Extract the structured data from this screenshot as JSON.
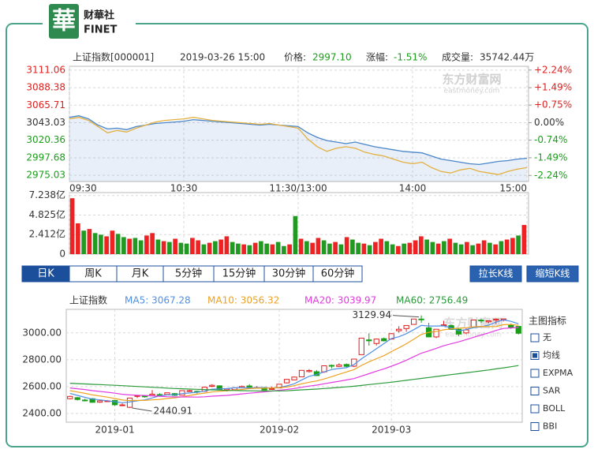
{
  "logo": {
    "mark": "華",
    "name": "财華社",
    "latin": "FINET"
  },
  "quote": {
    "name": "上证指数[000001]",
    "time": "2019-03-26 15:00",
    "price_label": "价格:",
    "price": "2997.10",
    "change_label": "涨幅:",
    "change": "-1.51%",
    "volume_label": "成交量:",
    "volume": "35742.44万",
    "change_color": "#1a9e1a"
  },
  "watermark": {
    "cn": "东方财富网",
    "en": "eastmoney.com"
  },
  "chart_data": [
    {
      "type": "line",
      "categories": [
        "09:30",
        null,
        null,
        null,
        null,
        null,
        null,
        null,
        null,
        null,
        null,
        null,
        "10:30",
        null,
        null,
        null,
        null,
        null,
        null,
        null,
        null,
        null,
        null,
        null,
        "11:30/13:00",
        null,
        null,
        null,
        null,
        null,
        null,
        null,
        null,
        null,
        null,
        null,
        "14:00",
        null,
        null,
        null,
        null,
        null,
        null,
        null,
        null,
        null,
        null,
        null,
        "15:00"
      ],
      "series": [
        {
          "color": "#4a86c8",
          "area": true,
          "values": [
            3050,
            3052,
            3048,
            3040,
            3035,
            3036,
            3034,
            3038,
            3040,
            3042,
            3043,
            3044,
            3045,
            3047,
            3046,
            3045,
            3044,
            3043,
            3042,
            3041,
            3040,
            3041,
            3040,
            3039,
            3038,
            3030,
            3024,
            3020,
            3018,
            3016,
            3018,
            3015,
            3012,
            3010,
            3008,
            3006,
            3005,
            3004,
            3000,
            2996,
            2994,
            2992,
            2990,
            2989,
            2991,
            2993,
            2994,
            2996,
            2997.1
          ]
        },
        {
          "color": "#e3b040",
          "values": [
            3048,
            3050,
            3046,
            3038,
            3030,
            3033,
            3031,
            3036,
            3040,
            3044,
            3046,
            3047,
            3048,
            3050,
            3048,
            3046,
            3045,
            3044,
            3043,
            3042,
            3041,
            3042,
            3040,
            3038,
            3036,
            3022,
            3012,
            3006,
            3010,
            3012,
            3010,
            3005,
            3002,
            3000,
            2996,
            2992,
            2990,
            2992,
            2985,
            2980,
            2978,
            2982,
            2984,
            2980,
            2978,
            2976,
            2980,
            2983,
            2985
          ]
        }
      ],
      "ylim": [
        2967,
        3116
      ],
      "yticks": [
        2975.03,
        2997.68,
        3020.36,
        3043.03,
        3065.71,
        3088.38,
        3111.06
      ],
      "y2lim": [
        -2.5,
        2.4
      ],
      "y2ticks": [
        {
          "value": -2.24,
          "label": "-2.24%"
        },
        {
          "value": -1.49,
          "label": "-1.49%"
        },
        {
          "value": -0.74,
          "label": "-0.74%"
        },
        {
          "value": 0,
          "label": "0.00%"
        },
        {
          "value": 0.75,
          "label": "+0.75%"
        },
        {
          "value": 1.49,
          "label": "+1.49%"
        },
        {
          "value": 2.24,
          "label": "+2.24%"
        }
      ],
      "up_color": "#e0201e",
      "down_color": "#1a9e1a",
      "grid": true
    },
    {
      "type": "bar",
      "values": [
        6.9,
        3.8,
        2.9,
        3.1,
        2.6,
        2.4,
        2.2,
        2.9,
        2.5,
        2.1,
        1.9,
        2.0,
        1.7,
        2.3,
        2.6,
        1.8,
        1.6,
        1.5,
        1.9,
        1.4,
        1.3,
        2.0,
        1.7,
        1.2,
        1.4,
        1.6,
        1.8,
        2.2,
        1.5,
        1.3,
        1.2,
        1.1,
        1.4,
        1.6,
        1.3,
        1.2,
        1.5,
        1.0,
        1.2,
        4.7,
        1.9,
        1.6,
        1.4,
        2.0,
        1.7,
        1.3,
        1.5,
        1.2,
        2.1,
        1.8,
        1.4,
        1.3,
        1.1,
        1.5,
        1.9,
        1.6,
        1.2,
        1.0,
        1.3,
        1.4,
        1.7,
        2.2,
        1.8,
        1.5,
        1.3,
        1.6,
        1.9,
        1.4,
        1.2,
        1.5,
        1.1,
        1.3,
        1.7,
        1.4,
        1.2,
        1.6,
        1.8,
        2.0,
        2.3,
        3.6
      ],
      "colors": [
        "#e22",
        "#e22",
        "#292",
        "#e22",
        "#292",
        "#292",
        "#e22",
        "#e22",
        "#292",
        "#292",
        "#e22",
        "#292",
        "#292",
        "#e22",
        "#e22",
        "#292",
        "#e22",
        "#292",
        "#e22",
        "#292",
        "#292",
        "#e22",
        "#e22",
        "#292",
        "#e22",
        "#292",
        "#e22",
        "#e22",
        "#292",
        "#292",
        "#e22",
        "#292",
        "#e22",
        "#292",
        "#292",
        "#e22",
        "#292",
        "#292",
        "#e22",
        "#292",
        "#e22",
        "#292",
        "#e22",
        "#e22",
        "#292",
        "#292",
        "#e22",
        "#292",
        "#e22",
        "#292",
        "#292",
        "#e22",
        "#292",
        "#e22",
        "#e22",
        "#292",
        "#292",
        "#e22",
        "#292",
        "#e22",
        "#e22",
        "#e22",
        "#292",
        "#292",
        "#e22",
        "#292",
        "#e22",
        "#292",
        "#292",
        "#e22",
        "#292",
        "#e22",
        "#e22",
        "#292",
        "#e22",
        "#292",
        "#e22",
        "#e22",
        "#292",
        "#e22"
      ],
      "ylim": [
        0,
        7.6
      ],
      "yticks": [
        0,
        {
          "value": 2.412,
          "label": "2.412亿"
        },
        {
          "value": 4.825,
          "label": "4.825亿"
        },
        {
          "value": 7.238,
          "label": "7.238亿"
        }
      ],
      "grid": true
    },
    {
      "type": "candlestick",
      "title": "上证指数",
      "categories": [
        null,
        null,
        null,
        null,
        null,
        null,
        "2019-01",
        null,
        null,
        null,
        null,
        null,
        null,
        null,
        null,
        null,
        null,
        null,
        null,
        null,
        null,
        null,
        null,
        null,
        null,
        null,
        null,
        null,
        "2019-02",
        null,
        null,
        null,
        null,
        null,
        null,
        null,
        null,
        null,
        null,
        null,
        null,
        null,
        null,
        "2019-03",
        null,
        null,
        null,
        null,
        null,
        null,
        null,
        null,
        null,
        null,
        null,
        null,
        null,
        null,
        null,
        null,
        null
      ],
      "ohlc": [
        [
          2510,
          2532,
          2505,
          2527
        ],
        [
          2518,
          2522,
          2497,
          2504
        ],
        [
          2500,
          2510,
          2490,
          2498
        ],
        [
          2510,
          2515,
          2482,
          2483
        ],
        [
          2484,
          2500,
          2480,
          2494
        ],
        [
          2493,
          2500,
          2488,
          2494
        ],
        [
          2497,
          2500,
          2456,
          2465
        ],
        [
          2460,
          2475,
          2455,
          2464
        ],
        [
          2446,
          2516,
          2440.91,
          2515
        ],
        [
          2528,
          2536,
          2515,
          2533
        ],
        [
          2530,
          2532,
          2518,
          2526
        ],
        [
          2535,
          2574,
          2533,
          2544
        ],
        [
          2541,
          2551,
          2525,
          2535
        ],
        [
          2541,
          2555,
          2537,
          2554
        ],
        [
          2548,
          2552,
          2530,
          2535
        ],
        [
          2536,
          2571,
          2534,
          2570
        ],
        [
          2568,
          2575,
          2563,
          2570
        ],
        [
          2565,
          2570,
          2548,
          2560
        ],
        [
          2565,
          2598,
          2562,
          2596
        ],
        [
          2602,
          2618,
          2596,
          2610
        ],
        [
          2606,
          2609,
          2576,
          2579
        ],
        [
          2573,
          2588,
          2564,
          2581
        ],
        [
          2577,
          2596,
          2570,
          2591
        ],
        [
          2591,
          2608,
          2587,
          2601
        ],
        [
          2605,
          2618,
          2595,
          2597
        ],
        [
          2594,
          2603,
          2585,
          2594
        ],
        [
          2593,
          2598,
          2573,
          2575
        ],
        [
          2583,
          2600,
          2576,
          2585
        ],
        [
          2590,
          2619,
          2590,
          2618
        ],
        [
          2628,
          2656,
          2624,
          2654
        ],
        [
          2650,
          2675,
          2648,
          2671
        ],
        [
          2673,
          2722,
          2673,
          2721
        ],
        [
          2712,
          2730,
          2705,
          2720
        ],
        [
          2711,
          2723,
          2682,
          2682
        ],
        [
          2710,
          2757,
          2702,
          2755
        ],
        [
          2758,
          2764,
          2735,
          2755
        ],
        [
          2750,
          2774,
          2745,
          2761
        ],
        [
          2765,
          2772,
          2743,
          2751
        ],
        [
          2752,
          2806,
          2745,
          2805
        ],
        [
          2838,
          2961,
          2838,
          2961
        ],
        [
          2948,
          2997,
          2905,
          2941
        ],
        [
          2921,
          2958,
          2906,
          2954
        ],
        [
          2957,
          2965,
          2936,
          2941
        ],
        [
          2954,
          2998,
          2953,
          2994
        ],
        [
          3016,
          3050,
          3003,
          3027
        ],
        [
          3032,
          3055,
          3008,
          3055
        ],
        [
          3063,
          3104,
          3063,
          3103
        ],
        [
          3103,
          3129.94,
          3075,
          3102
        ],
        [
          3038,
          3075,
          2969,
          2970
        ],
        [
          2970,
          3027,
          2961,
          3027
        ],
        [
          3054,
          3090,
          3051,
          3060
        ],
        [
          3054,
          3062,
          3023,
          3026
        ],
        [
          3027,
          3033,
          2975,
          2991
        ],
        [
          3000,
          3034,
          2990,
          3022
        ],
        [
          3043,
          3096,
          3040,
          3096
        ],
        [
          3095,
          3103,
          3072,
          3091
        ],
        [
          3082,
          3093,
          3071,
          3090
        ],
        [
          3095,
          3107,
          3067,
          3102
        ],
        [
          3097,
          3105,
          3085,
          3104
        ],
        [
          3060,
          3070,
          3030,
          3043
        ],
        [
          3048,
          3051,
          2988,
          2997
        ]
      ],
      "series": [
        {
          "name": "MA5: 3067.28",
          "color": "#4f8fe6",
          "values": [
            2550,
            2535,
            2520,
            2507,
            2501,
            2495,
            2487,
            2480,
            2486,
            2494,
            2501,
            2516,
            2531,
            2538,
            2539,
            2548,
            2553,
            2558,
            2566,
            2581,
            2583,
            2585,
            2591,
            2592,
            2590,
            2593,
            2592,
            2590,
            2594,
            2605,
            2621,
            2650,
            2677,
            2690,
            2710,
            2727,
            2735,
            2741,
            2765,
            2807,
            2844,
            2882,
            2920,
            2958,
            2971,
            2994,
            3024,
            3056,
            3051,
            3051,
            3052,
            3037,
            3015,
            3025,
            3039,
            3045,
            3058,
            3080,
            3097,
            3086,
            3067.28
          ]
        },
        {
          "name": "MA10: 3056.32",
          "color": "#eea11f",
          "values": [
            2570,
            2560,
            2550,
            2538,
            2530,
            2522,
            2511,
            2500,
            2496,
            2497,
            2498,
            2501,
            2505,
            2512,
            2516,
            2524,
            2534,
            2544,
            2552,
            2560,
            2565,
            2569,
            2574,
            2579,
            2585,
            2588,
            2588,
            2590,
            2593,
            2597,
            2607,
            2621,
            2633,
            2642,
            2657,
            2674,
            2692,
            2709,
            2727,
            2758,
            2785,
            2808,
            2830,
            2861,
            2889,
            2919,
            2953,
            2988,
            3004,
            3011,
            3023,
            3030,
            3035,
            3038,
            3045,
            3048,
            3047,
            3047,
            3061,
            3062,
            3056.32
          ]
        },
        {
          "name": "MA20: 3039.97",
          "color": "#e33be0",
          "values": [
            2590,
            2584,
            2578,
            2570,
            2564,
            2558,
            2551,
            2543,
            2538,
            2536,
            2534,
            2531,
            2528,
            2525,
            2523,
            2523,
            2523,
            2522,
            2524,
            2529,
            2532,
            2535,
            2540,
            2546,
            2551,
            2556,
            2561,
            2567,
            2573,
            2579,
            2586,
            2595,
            2604,
            2611,
            2621,
            2631,
            2640,
            2650,
            2660,
            2678,
            2696,
            2715,
            2732,
            2752,
            2773,
            2797,
            2823,
            2849,
            2866,
            2885,
            2904,
            2919,
            2933,
            2950,
            2967,
            2984,
            3000,
            3018,
            3033,
            3037,
            3039.97
          ]
        },
        {
          "name": "MA60: 2756.49",
          "color": "#2a9a3a",
          "values": [
            2625,
            2622,
            2620,
            2617,
            2615,
            2612,
            2610,
            2607,
            2604,
            2601,
            2598,
            2595,
            2592,
            2589,
            2586,
            2584,
            2582,
            2580,
            2578,
            2576,
            2574,
            2572,
            2571,
            2570,
            2569,
            2568,
            2568,
            2568,
            2568,
            2569,
            2573,
            2576,
            2579,
            2582,
            2586,
            2590,
            2594,
            2598,
            2603,
            2609,
            2615,
            2621,
            2627,
            2633,
            2640,
            2647,
            2654,
            2661,
            2668,
            2675,
            2682,
            2689,
            2696,
            2703,
            2710,
            2717,
            2724,
            2732,
            2740,
            2748,
            2756.49
          ]
        }
      ],
      "ylim": [
        2335,
        3175
      ],
      "yticks": [
        {
          "value": 2400,
          "label": "2400.00"
        },
        {
          "value": 2600,
          "label": "2600.00"
        },
        {
          "value": 2800,
          "label": "2800.00"
        },
        {
          "value": 3000,
          "label": "3000.00"
        }
      ],
      "up_color": "#e0201e",
      "down_color": "#1a9e1a",
      "grid": true,
      "annotations": {
        "high": "3129.94",
        "low": "2440.91"
      }
    }
  ],
  "tabs": [
    "日K",
    "周K",
    "月K",
    "5分钟",
    "15分钟",
    "30分钟",
    "60分钟"
  ],
  "active_tab": 0,
  "buttons": [
    "拉长K线",
    "缩短K线"
  ],
  "indicator_panel": {
    "title": "主图指标",
    "options": [
      "无",
      "均线",
      "EXPMA",
      "SAR",
      "BOLL",
      "BBI"
    ],
    "checked": 1
  }
}
